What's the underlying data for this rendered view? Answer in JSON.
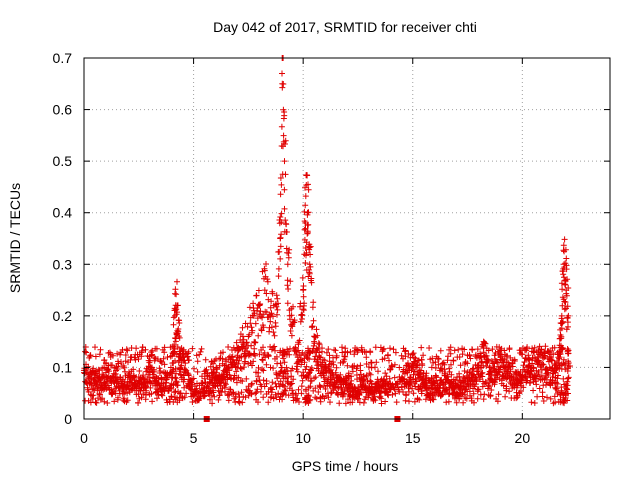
{
  "chart_data": {
    "type": "scatter",
    "title": "Day 042 of 2017, SRMTID for receiver chti",
    "xlabel": "GPS time / hours",
    "ylabel": "SRMTID / TECUs",
    "xlim": [
      0,
      24
    ],
    "ylim": [
      0,
      0.7
    ],
    "x_ticks": [
      0,
      5,
      10,
      15,
      20
    ],
    "x_tick_labels": [
      "0",
      "5",
      "10",
      "15",
      "20"
    ],
    "y_ticks": [
      0,
      0.1,
      0.2,
      0.3,
      0.4,
      0.5,
      0.6,
      0.7
    ],
    "y_tick_labels": [
      "0",
      "0.1",
      "0.2",
      "0.3",
      "0.4",
      "0.5",
      "0.6",
      "0.7"
    ],
    "grid": true,
    "marker": "+",
    "series_color": "#e00000",
    "gap_markers_x": [
      5.6,
      14.3
    ],
    "x": [
      0.0,
      0.25,
      0.5,
      0.75,
      1.0,
      1.25,
      1.5,
      1.75,
      2.0,
      2.25,
      2.5,
      2.75,
      3.0,
      3.25,
      3.5,
      3.75,
      4.0,
      4.15,
      4.25,
      4.4,
      4.6,
      4.9,
      5.2,
      5.5,
      5.8,
      6.0,
      6.25,
      6.5,
      6.75,
      7.0,
      7.25,
      7.5,
      7.75,
      8.0,
      8.25,
      8.5,
      8.75,
      8.95,
      9.05,
      9.15,
      9.3,
      9.5,
      9.75,
      10.0,
      10.1,
      10.2,
      10.3,
      10.5,
      10.75,
      11.0,
      11.25,
      11.5,
      11.75,
      12.0,
      12.25,
      12.5,
      12.75,
      13.0,
      13.25,
      13.5,
      13.75,
      14.0,
      14.5,
      14.75,
      15.0,
      15.25,
      15.5,
      15.75,
      16.0,
      16.25,
      16.5,
      16.75,
      17.0,
      17.25,
      17.5,
      17.75,
      18.0,
      18.25,
      18.5,
      18.75,
      19.0,
      19.25,
      19.5,
      19.75,
      20.0,
      20.25,
      20.5,
      20.75,
      21.0,
      21.25,
      21.5,
      21.7,
      21.8,
      21.9,
      22.0,
      22.1
    ],
    "y": [
      0.09,
      0.07,
      0.08,
      0.06,
      0.09,
      0.07,
      0.08,
      0.06,
      0.07,
      0.08,
      0.06,
      0.07,
      0.09,
      0.07,
      0.06,
      0.07,
      0.08,
      0.2,
      0.22,
      0.12,
      0.09,
      0.07,
      0.05,
      0.06,
      0.07,
      0.08,
      0.07,
      0.09,
      0.1,
      0.12,
      0.14,
      0.16,
      0.2,
      0.22,
      0.25,
      0.2,
      0.18,
      0.35,
      0.65,
      0.5,
      0.3,
      0.18,
      0.12,
      0.25,
      0.38,
      0.4,
      0.3,
      0.15,
      0.12,
      0.1,
      0.08,
      0.07,
      0.06,
      0.07,
      0.06,
      0.05,
      0.07,
      0.06,
      0.05,
      0.06,
      0.07,
      0.06,
      0.08,
      0.09,
      0.1,
      0.08,
      0.07,
      0.06,
      0.07,
      0.06,
      0.07,
      0.06,
      0.05,
      0.06,
      0.07,
      0.08,
      0.1,
      0.12,
      0.1,
      0.09,
      0.12,
      0.1,
      0.08,
      0.07,
      0.08,
      0.09,
      0.1,
      0.11,
      0.12,
      0.1,
      0.09,
      0.12,
      0.2,
      0.3,
      0.25,
      0.2
    ],
    "noise_band_y": [
      0.03,
      0.14
    ]
  }
}
